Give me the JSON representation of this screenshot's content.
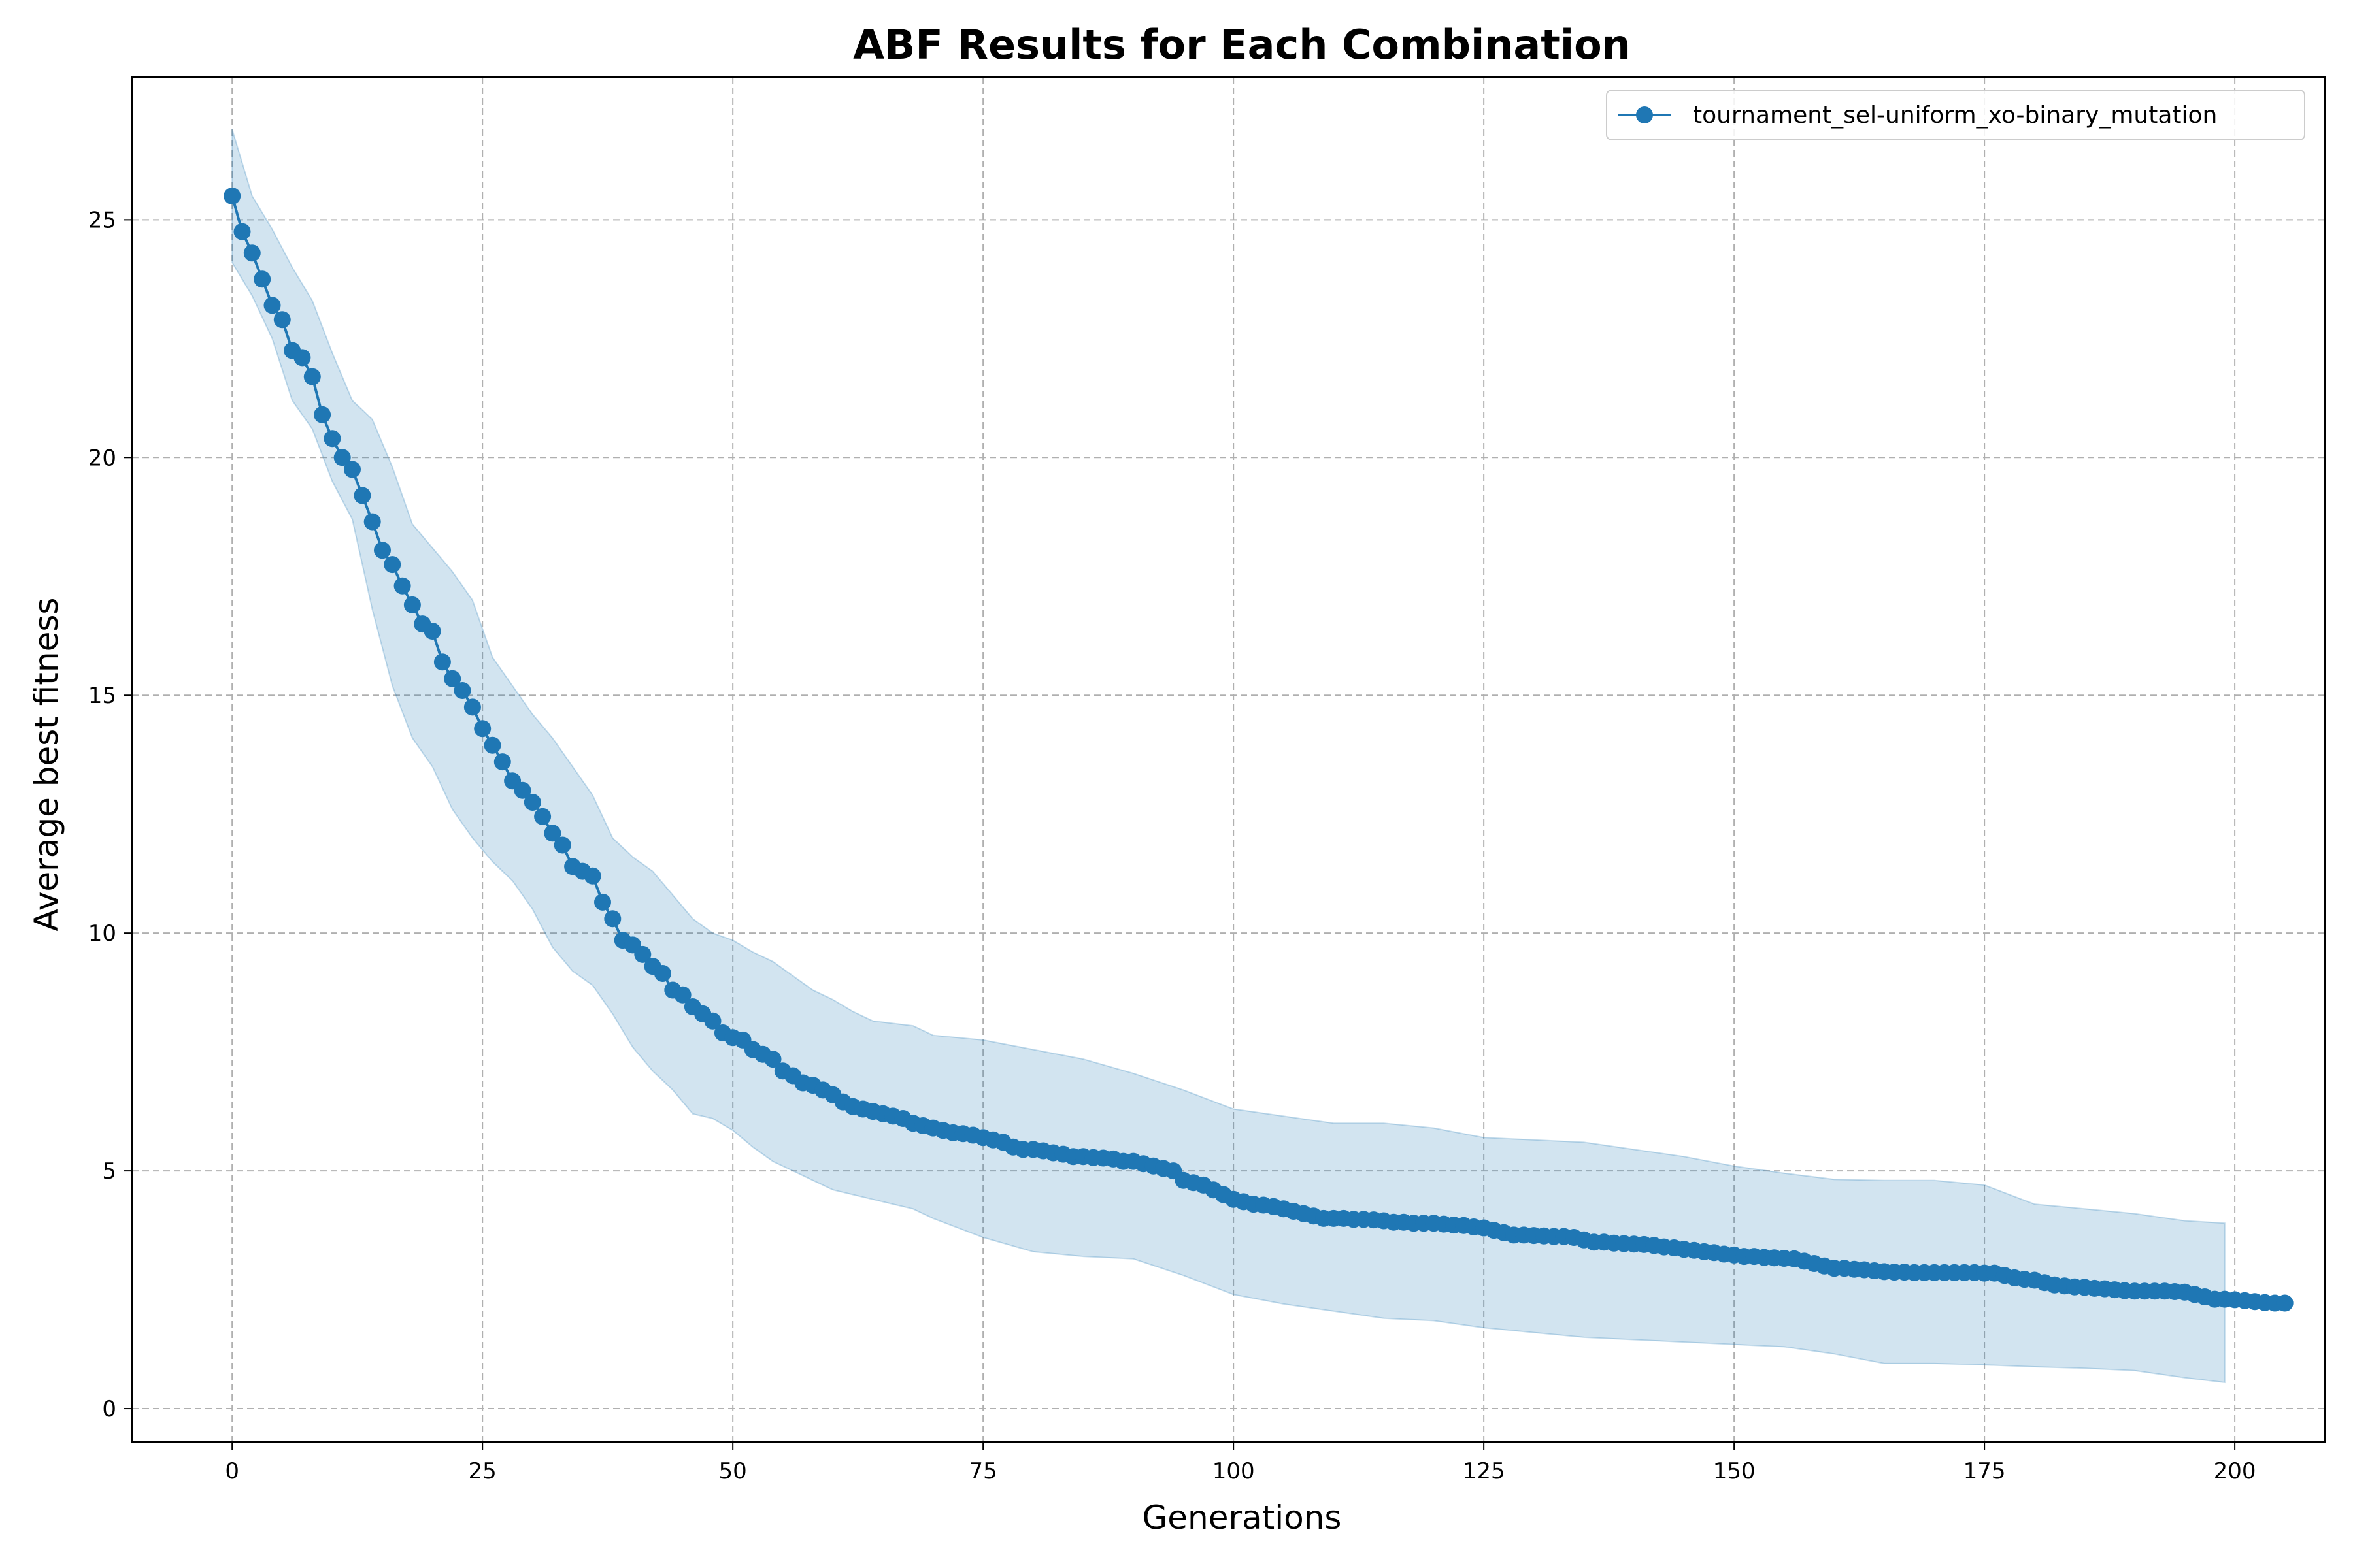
{
  "chart_data": {
    "type": "line",
    "title": "ABF Results for Each Combination",
    "xlabel": "Generations",
    "ylabel": "Average best fitness",
    "xlim": [
      -10,
      209
    ],
    "ylim": [
      -0.7,
      28.0
    ],
    "xticks": [
      0,
      25,
      50,
      75,
      100,
      125,
      150,
      175,
      200
    ],
    "yticks": [
      0,
      5,
      10,
      15,
      20,
      25
    ],
    "grid": true,
    "legend_position": "top-right",
    "colors": {
      "line": "#1f77b4",
      "band": "#1f77b4",
      "grid": "#b0b0b0"
    },
    "series": [
      {
        "name": "tournament_sel-uniform_xo-binary_mutation",
        "marker": "circle",
        "x_start": 0,
        "x_step": 1,
        "values": [
          25.5,
          24.75,
          24.3,
          23.75,
          23.2,
          22.9,
          22.25,
          22.1,
          21.7,
          20.9,
          20.4,
          20.0,
          19.75,
          19.2,
          18.65,
          18.05,
          17.75,
          17.3,
          16.9,
          16.5,
          16.35,
          15.7,
          15.35,
          15.1,
          14.75,
          14.3,
          13.95,
          13.6,
          13.2,
          13.0,
          12.75,
          12.45,
          12.1,
          11.85,
          11.4,
          11.3,
          11.2,
          10.65,
          10.3,
          9.85,
          9.75,
          9.55,
          9.3,
          9.15,
          8.8,
          8.7,
          8.45,
          8.3,
          8.15,
          7.9,
          7.8,
          7.75,
          7.55,
          7.45,
          7.35,
          7.1,
          7.0,
          6.85,
          6.8,
          6.7,
          6.6,
          6.45,
          6.35,
          6.3,
          6.25,
          6.2,
          6.15,
          6.1,
          6.0,
          5.95,
          5.9,
          5.85,
          5.8,
          5.78,
          5.75,
          5.7,
          5.65,
          5.6,
          5.5,
          5.45,
          5.45,
          5.42,
          5.38,
          5.35,
          5.3,
          5.3,
          5.28,
          5.27,
          5.25,
          5.2,
          5.2,
          5.15,
          5.1,
          5.05,
          5.0,
          4.8,
          4.75,
          4.7,
          4.6,
          4.5,
          4.4,
          4.35,
          4.3,
          4.28,
          4.25,
          4.2,
          4.15,
          4.1,
          4.05,
          4.0,
          4.0,
          4.0,
          3.98,
          3.98,
          3.97,
          3.95,
          3.92,
          3.92,
          3.9,
          3.9,
          3.9,
          3.88,
          3.86,
          3.85,
          3.82,
          3.8,
          3.75,
          3.7,
          3.65,
          3.65,
          3.64,
          3.63,
          3.62,
          3.62,
          3.6,
          3.55,
          3.5,
          3.5,
          3.48,
          3.47,
          3.46,
          3.45,
          3.43,
          3.4,
          3.38,
          3.35,
          3.33,
          3.3,
          3.28,
          3.25,
          3.23,
          3.2,
          3.2,
          3.18,
          3.17,
          3.16,
          3.15,
          3.1,
          3.05,
          3.0,
          2.95,
          2.95,
          2.93,
          2.92,
          2.9,
          2.88,
          2.87,
          2.87,
          2.86,
          2.86,
          2.86,
          2.86,
          2.86,
          2.86,
          2.86,
          2.85,
          2.85,
          2.8,
          2.75,
          2.72,
          2.7,
          2.65,
          2.6,
          2.58,
          2.56,
          2.55,
          2.53,
          2.52,
          2.5,
          2.48,
          2.47,
          2.47,
          2.47,
          2.47,
          2.46,
          2.45,
          2.4,
          2.35,
          2.3,
          2.3,
          2.29,
          2.27,
          2.25,
          2.23,
          2.22,
          2.22
        ],
        "band_x": [
          0,
          2,
          4,
          6,
          8,
          10,
          12,
          14,
          16,
          18,
          20,
          22,
          24,
          26,
          28,
          30,
          32,
          34,
          36,
          38,
          40,
          42,
          44,
          46,
          48,
          50,
          52,
          54,
          56,
          58,
          60,
          62,
          64,
          66,
          68,
          70,
          75,
          80,
          85,
          90,
          95,
          100,
          105,
          110,
          115,
          120,
          125,
          130,
          135,
          140,
          145,
          150,
          155,
          160,
          165,
          170,
          175,
          180,
          185,
          190,
          195,
          199
        ],
        "band_upper": [
          26.9,
          25.5,
          24.8,
          24.0,
          23.3,
          22.2,
          21.2,
          20.8,
          19.8,
          18.6,
          18.1,
          17.6,
          17.0,
          15.8,
          15.2,
          14.6,
          14.1,
          13.5,
          12.9,
          12.0,
          11.6,
          11.3,
          10.8,
          10.3,
          10.0,
          9.85,
          9.6,
          9.4,
          9.1,
          8.8,
          8.6,
          8.35,
          8.15,
          8.1,
          8.05,
          7.85,
          7.75,
          7.55,
          7.35,
          7.05,
          6.7,
          6.3,
          6.15,
          6.0,
          6.0,
          5.9,
          5.7,
          5.65,
          5.6,
          5.45,
          5.3,
          5.1,
          4.95,
          4.82,
          4.8,
          4.8,
          4.7,
          4.3,
          4.2,
          4.1,
          3.95,
          3.9
        ],
        "band_lower": [
          24.1,
          23.4,
          22.5,
          21.2,
          20.6,
          19.5,
          18.7,
          16.8,
          15.2,
          14.1,
          13.5,
          12.6,
          12.0,
          11.5,
          11.1,
          10.5,
          9.7,
          9.2,
          8.9,
          8.3,
          7.6,
          7.1,
          6.7,
          6.2,
          6.1,
          5.85,
          5.5,
          5.2,
          5.0,
          4.8,
          4.6,
          4.5,
          4.4,
          4.3,
          4.2,
          4.0,
          3.6,
          3.3,
          3.2,
          3.15,
          2.8,
          2.4,
          2.2,
          2.05,
          1.9,
          1.85,
          1.7,
          1.6,
          1.5,
          1.45,
          1.4,
          1.35,
          1.3,
          1.15,
          0.95,
          0.95,
          0.92,
          0.88,
          0.85,
          0.8,
          0.65,
          0.55
        ]
      }
    ]
  }
}
